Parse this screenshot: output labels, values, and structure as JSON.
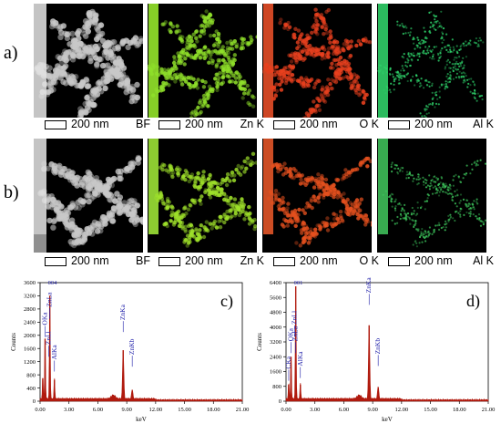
{
  "figure": {
    "row_labels": [
      "a)",
      "b)"
    ],
    "rows": [
      {
        "panels": [
          {
            "scale": "200 nm",
            "element": "BF",
            "kind": "bf",
            "tint": "#c8c8c8",
            "bar": "#f0f0f0"
          },
          {
            "scale": "200 nm",
            "element": "Zn K",
            "kind": "map",
            "tint": "#8fe02a",
            "bar": "#9ef22e"
          },
          {
            "scale": "200 nm",
            "element": "O K",
            "kind": "map",
            "tint": "#e8401e",
            "bar": "#f2522a"
          },
          {
            "scale": "200 nm",
            "element": "Al K",
            "kind": "map",
            "tint": "#2ed26a",
            "bar": "#32dc6e"
          }
        ]
      },
      {
        "panels": [
          {
            "scale": "200 nm",
            "element": "BF",
            "kind": "bf",
            "tint": "#c8c8c8",
            "bar": "#f0f0f0"
          },
          {
            "scale": "200 nm",
            "element": "Zn K",
            "kind": "map",
            "tint": "#9ee02a",
            "bar": "#a6f03a"
          },
          {
            "scale": "200 nm",
            "element": "O K",
            "kind": "map",
            "tint": "#e4501e",
            "bar": "#f05a2a"
          },
          {
            "scale": "200 nm",
            "element": "Al K",
            "kind": "map",
            "tint": "#3cc25a",
            "bar": "#42c85e"
          }
        ]
      }
    ]
  },
  "colors": {
    "spectrum": "#b01a0e",
    "peak_label": "#1c1ca8"
  },
  "chart_data": [
    {
      "type": "line",
      "panel_label": "c)",
      "xlabel": "keV",
      "ylabel": "Counts",
      "x_ticks": [
        "0.00",
        "3.00",
        "6.00",
        "9.00",
        "12.00",
        "15.00",
        "18.00",
        "21.00"
      ],
      "y_ticks": [
        "0",
        "400",
        "800",
        "1200",
        "1600",
        "2000",
        "2400",
        "2800",
        "3200",
        "3600"
      ],
      "xlim": [
        0,
        21
      ],
      "ylim": [
        0,
        3600
      ],
      "top_label": "004",
      "peaks": [
        {
          "x": 0.28,
          "y": 700
        },
        {
          "x": 0.52,
          "y": 1900
        },
        {
          "x": 1.01,
          "y": 3200
        },
        {
          "x": 1.49,
          "y": 650
        },
        {
          "x": 8.63,
          "y": 1550
        },
        {
          "x": 9.57,
          "y": 300
        }
      ],
      "peak_labels": [
        {
          "text": "OKa",
          "x": 0.52,
          "y": 1950
        },
        {
          "text": "ZnLa",
          "x": 1.01,
          "y": 2500
        },
        {
          "text": "ZnLl",
          "x": 0.9,
          "y": 1350
        },
        {
          "text": "AlKa",
          "x": 1.49,
          "y": 900
        },
        {
          "text": "ZnKa",
          "x": 8.63,
          "y": 2100
        },
        {
          "text": "ZnKb",
          "x": 9.57,
          "y": 1050
        }
      ]
    },
    {
      "type": "line",
      "panel_label": "d)",
      "xlabel": "keV",
      "ylabel": "Counts",
      "x_ticks": [
        "0.00",
        "3.00",
        "6.00",
        "9.00",
        "12.00",
        "15.00",
        "18.00",
        "21.00"
      ],
      "y_ticks": [
        "0",
        "800",
        "1600",
        "2400",
        "3200",
        "4000",
        "4800",
        "5600",
        "6400"
      ],
      "xlim": [
        0,
        21
      ],
      "ylim": [
        0,
        6400
      ],
      "top_label": "001",
      "peaks": [
        {
          "x": 0.28,
          "y": 900
        },
        {
          "x": 0.52,
          "y": 2400
        },
        {
          "x": 1.01,
          "y": 6200
        },
        {
          "x": 1.49,
          "y": 900
        },
        {
          "x": 8.63,
          "y": 4100
        },
        {
          "x": 9.57,
          "y": 700
        }
      ],
      "peak_labels": [
        {
          "text": "CKa",
          "x": 0.28,
          "y": 1100
        },
        {
          "text": "OKa",
          "x": 0.52,
          "y": 2600
        },
        {
          "text": "ZnLa",
          "x": 1.01,
          "y": 2600
        },
        {
          "text": "ZnLl",
          "x": 0.9,
          "y": 3500
        },
        {
          "text": "AlKa",
          "x": 1.49,
          "y": 1250
        },
        {
          "text": "ZnKa",
          "x": 8.63,
          "y": 5200
        },
        {
          "text": "ZnKb",
          "x": 9.57,
          "y": 1900
        }
      ]
    }
  ]
}
